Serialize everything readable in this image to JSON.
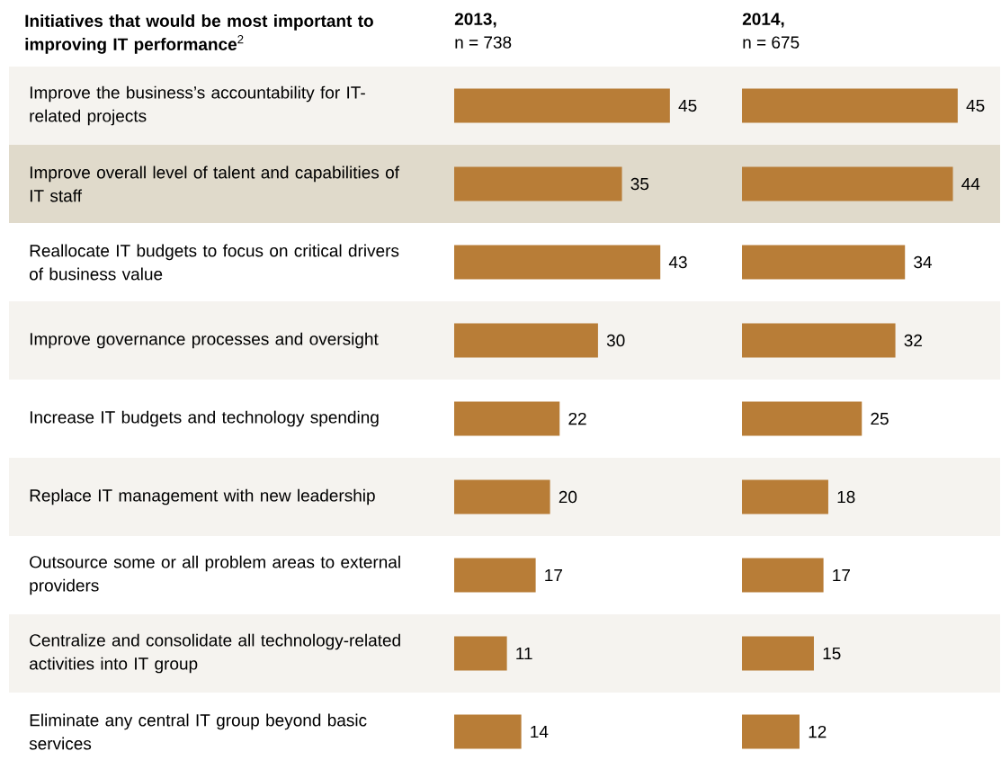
{
  "chart_data": [
    {
      "type": "bar",
      "orientation": "horizontal",
      "title": "2013,",
      "subtitle": "n = 738",
      "ylabel": "**Initiatives that would be most important to improving IT performance**$^{2}$",
      "categories": [
        "Improve the business’s accountability for IT-related projects",
        "Improve overall level of talent and capabilities of IT staff",
        "Reallocate IT budgets to focus on critical drivers of business value",
        "Improve governance processes and oversight",
        "Increase IT budgets and technology spending",
        "Replace IT management with new leadership",
        "Outsource some or all problem areas to external providers",
        "Centralize and consolidate all technology-related activities into IT group",
        "Eliminate any central IT group beyond basic services"
      ],
      "values": [
        45,
        35,
        43,
        30,
        22,
        20,
        17,
        11,
        14
      ],
      "color": "#b87d37",
      "data_labels": true,
      "tick_labels": "y",
      "bands": [
        {
          "axis": "y",
          "from": "Improve the business’s accountability for IT-related projects",
          "to": "Improve the business’s accountability for IT-related projects",
          "color": "#f5f3ef"
        },
        {
          "axis": "y",
          "from": "Improve overall level of talent and capabilities of IT staff",
          "to": "Improve overall level of talent and capabilities of IT staff",
          "color": "#e0dacb"
        },
        {
          "axis": "y",
          "from": "Improve governance processes and oversight",
          "to": "Improve governance processes and oversight",
          "color": "#f5f3ef"
        },
        {
          "axis": "y",
          "from": "Replace IT management with new leadership",
          "to": "Replace IT management with new leadership",
          "color": "#f5f3ef"
        },
        {
          "axis": "y",
          "from": "Centralize and consolidate all technology-related activities into IT group",
          "to": "Centralize and consolidate all technology-related activities into IT group",
          "color": "#f5f3ef"
        }
      ]
    },
    {
      "type": "bar",
      "orientation": "horizontal",
      "title": "2014,",
      "subtitle": "n = 675",
      "categories": [
        "Improve the business’s accountability for IT-related projects",
        "Improve overall level of talent and capabilities of IT staff",
        "Reallocate IT budgets to focus on critical drivers of business value",
        "Improve governance processes and oversight",
        "Increase IT budgets and technology spending",
        "Replace IT management with new leadership",
        "Outsource some or all problem areas to external providers",
        "Centralize and consolidate all technology-related activities into IT group",
        "Eliminate any central IT group beyond basic services"
      ],
      "values": [
        45,
        44,
        34,
        32,
        25,
        18,
        17,
        15,
        12
      ],
      "color": "#b87d37",
      "data_labels": true,
      "tick_labels": false,
      "bands": [
        {
          "axis": "y",
          "from": "Improve the business’s accountability for IT-related projects",
          "to": "Improve the business’s accountability for IT-related projects",
          "color": "#f5f3ef"
        },
        {
          "axis": "y",
          "from": "Improve overall level of talent and capabilities of IT staff",
          "to": "Improve overall level of talent and capabilities of IT staff",
          "color": "#e0dacb"
        },
        {
          "axis": "y",
          "from": "Improve governance processes and oversight",
          "to": "Improve governance processes and oversight",
          "color": "#f5f3ef"
        },
        {
          "axis": "y",
          "from": "Replace IT management with new leadership",
          "to": "Replace IT management with new leadership",
          "color": "#f5f3ef"
        },
        {
          "axis": "y",
          "from": "Centralize and consolidate all technology-related activities into IT group",
          "to": "Centralize and consolidate all technology-related activities into IT group",
          "color": "#f5f3ef"
        }
      ]
    }
  ]
}
